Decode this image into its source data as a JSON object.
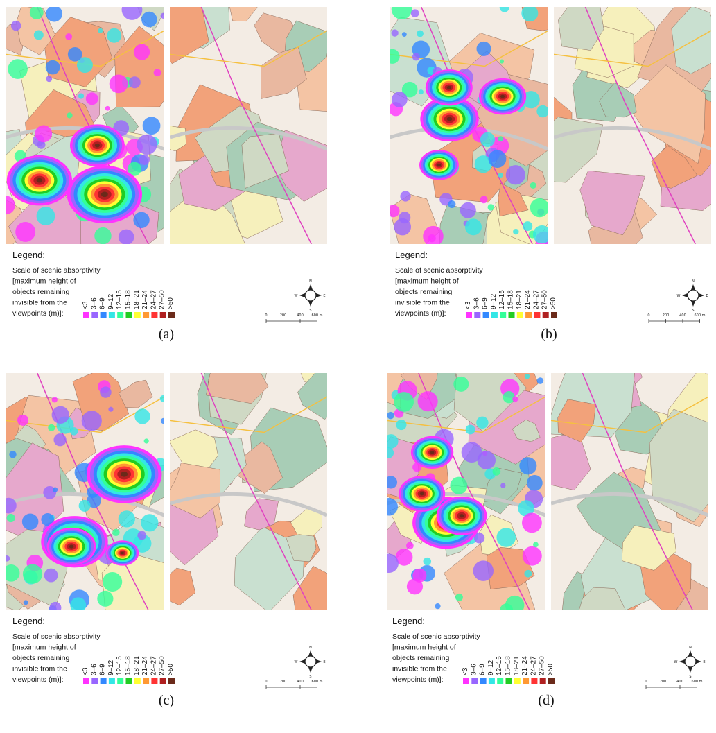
{
  "legend": {
    "heading": "Legend:",
    "title_lines": [
      "Scale of scenic absorptivity",
      "[maximum height of",
      "objects remaining",
      "invisible from the",
      "viewpoints (m)]:"
    ],
    "classes": [
      {
        "label": "<3",
        "color": "#ff33ff"
      },
      {
        "label": "3–6",
        "color": "#9966ff"
      },
      {
        "label": "6–9",
        "color": "#3388ff"
      },
      {
        "label": "9–12",
        "color": "#33e6e6"
      },
      {
        "label": "12–15",
        "color": "#33ff99"
      },
      {
        "label": "15–18",
        "color": "#22cc22"
      },
      {
        "label": "18–21",
        "color": "#ffff33"
      },
      {
        "label": "21–24",
        "color": "#ff9933"
      },
      {
        "label": "24–27",
        "color": "#ff3333"
      },
      {
        "label": "27–50",
        "color": "#b02020"
      },
      {
        "label": ">50",
        "color": "#6b2a1a"
      }
    ]
  },
  "compass": [
    "N",
    "E",
    "S",
    "W"
  ],
  "scale_bar": [
    "0",
    "200",
    "400",
    "600 m"
  ],
  "panels": [
    {
      "label": "(a)"
    },
    {
      "label": "(b)"
    },
    {
      "label": "(c)"
    },
    {
      "label": "(d)"
    }
  ]
}
